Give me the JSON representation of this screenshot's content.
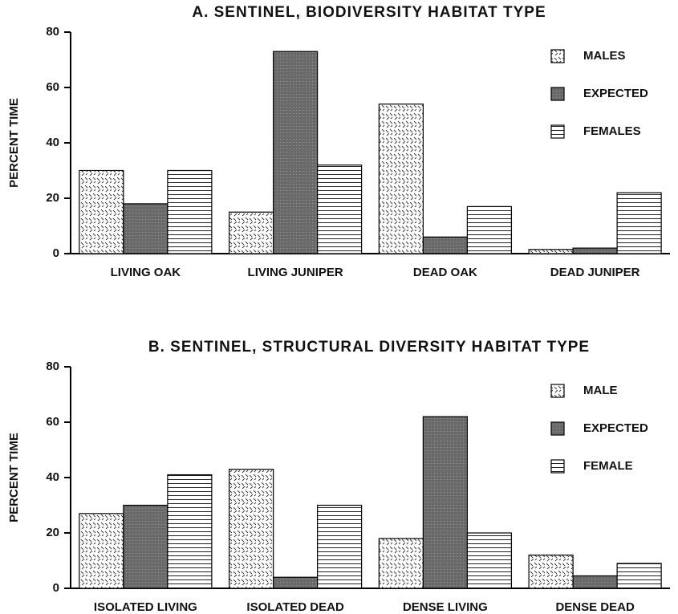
{
  "chart_data": [
    {
      "type": "bar",
      "title": "A. SENTINEL, BIODIVERSITY HABITAT TYPE",
      "y_label": "PERCENT TIME",
      "categories": [
        "LIVING OAK",
        "LIVING JUNIPER",
        "DEAD OAK",
        "DEAD JUNIPER"
      ],
      "series": [
        {
          "name": "MALES",
          "color": "#ffffff",
          "values": [
            30,
            15,
            54,
            1.5
          ]
        },
        {
          "name": "EXPECTED",
          "color": "#6a6a6a",
          "values": [
            18,
            73,
            6,
            2
          ]
        },
        {
          "name": "FEMALES",
          "color": "#ffffff",
          "values": [
            30,
            32,
            17,
            22
          ]
        }
      ],
      "ylim": [
        0,
        80
      ],
      "yticks": [
        0,
        20,
        40,
        60,
        80
      ],
      "legend": "upper right"
    },
    {
      "type": "bar",
      "title": "B. SENTINEL, STRUCTURAL DIVERSITY HABITAT TYPE",
      "y_label": "PERCENT TIME",
      "categories": [
        "ISOLATED LIVING",
        "ISOLATED DEAD",
        "DENSE LIVING",
        "DENSE DEAD"
      ],
      "series": [
        {
          "name": "MALE",
          "color": "#ffffff",
          "values": [
            27,
            43,
            18,
            12
          ]
        },
        {
          "name": "EXPECTED",
          "color": "#6a6a6a",
          "values": [
            30,
            4,
            62,
            4.5
          ]
        },
        {
          "name": "FEMALE",
          "color": "#ffffff",
          "values": [
            41,
            30,
            20,
            9
          ]
        }
      ],
      "ylim": [
        0,
        80
      ],
      "yticks": [
        0,
        20,
        40,
        60,
        80
      ],
      "legend": "upper right"
    }
  ]
}
